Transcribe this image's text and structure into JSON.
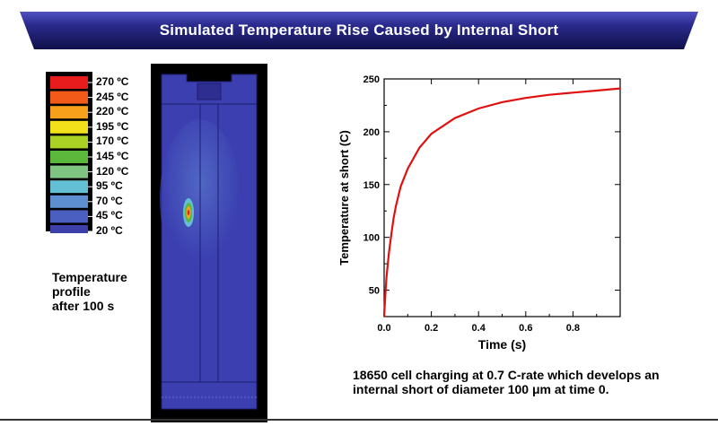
{
  "banner": {
    "title": "Simulated Temperature Rise Caused by Internal Short"
  },
  "legend": {
    "entries": [
      {
        "label": "270 ºC",
        "color": "#e81c1c"
      },
      {
        "label": "245 ºC",
        "color": "#f25a1a"
      },
      {
        "label": "220 ºC",
        "color": "#f6a01b"
      },
      {
        "label": "195 ºC",
        "color": "#f1e01a"
      },
      {
        "label": "170 ºC",
        "color": "#a9d225"
      },
      {
        "label": "145 ºC",
        "color": "#5cb83c"
      },
      {
        "label": "120 ºC",
        "color": "#7fc481"
      },
      {
        "label": "95 ºC",
        "color": "#63bfd4"
      },
      {
        "label": "70 ºC",
        "color": "#5d8ecf"
      },
      {
        "label": "45 ºC",
        "color": "#4a5fbf"
      },
      {
        "label": "20 ºC",
        "color": "#3c40a8"
      }
    ]
  },
  "profile_caption": [
    "Temperature",
    "profile",
    "after 100 s"
  ],
  "chart_data": {
    "type": "line",
    "xlabel": "Time (s)",
    "ylabel": "Temperature at short (C)",
    "xlim": [
      0,
      1
    ],
    "ylim": [
      25,
      250
    ],
    "xticks": [
      0.0,
      0.2,
      0.4,
      0.6,
      0.8
    ],
    "xtick_labels": [
      "0.0",
      "0.2",
      "0.4",
      "0.6",
      "0.8"
    ],
    "yticks": [
      50,
      100,
      150,
      200,
      250
    ],
    "ytick_labels": [
      "50",
      "100",
      "150",
      "200",
      "250"
    ],
    "grid": false,
    "line_color": "#e01010",
    "series": [
      {
        "x": [
          0,
          0.005,
          0.01,
          0.02,
          0.03,
          0.04,
          0.05,
          0.07,
          0.1,
          0.15,
          0.2,
          0.3,
          0.4,
          0.5,
          0.6,
          0.7,
          0.8,
          0.9,
          1.0
        ],
        "y": [
          25,
          45,
          62,
          85,
          102,
          118,
          130,
          148,
          165,
          185,
          198,
          213,
          222,
          228,
          232,
          235,
          237,
          239,
          241
        ]
      }
    ]
  },
  "chart_caption": [
    "18650 cell charging at 0.7 C-rate which develops an",
    "internal short of diameter 100 μm at time 0."
  ],
  "colors": {
    "banner_dark": "#14145a",
    "banner_light": "#3a3aa8",
    "cell_fill": "#3b3fb0"
  }
}
